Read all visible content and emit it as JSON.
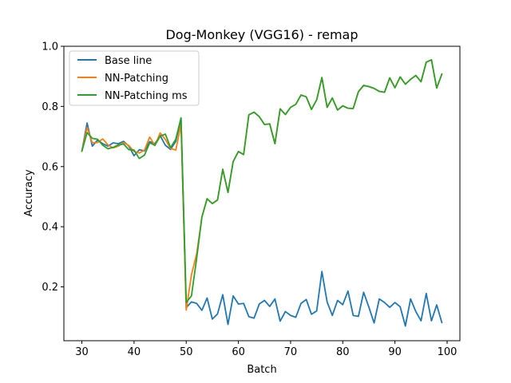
{
  "chart_data": {
    "type": "line",
    "title": "Dog-Monkey (VGG16) - remap",
    "xlabel": "Batch",
    "ylabel": "Accuracy",
    "xlim": [
      26.55,
      102.45
    ],
    "ylim": [
      0.021,
      1.0
    ],
    "xticks": [
      30,
      40,
      50,
      60,
      70,
      80,
      90,
      100
    ],
    "yticks": [
      0.2,
      0.4,
      0.6,
      0.8,
      1.0
    ],
    "xtick_labels": [
      "30",
      "40",
      "50",
      "60",
      "70",
      "80",
      "90",
      "100"
    ],
    "ytick_labels": [
      "0.2",
      "0.4",
      "0.6",
      "0.8",
      "1.0"
    ],
    "legend_position": "top-left",
    "grid": false,
    "x": [
      30,
      31,
      32,
      33,
      34,
      35,
      36,
      37,
      38,
      39,
      40,
      41,
      42,
      43,
      44,
      45,
      46,
      47,
      48,
      49,
      50,
      51,
      52,
      53,
      54,
      55,
      56,
      57,
      58,
      59,
      60,
      61,
      62,
      63,
      64,
      65,
      66,
      67,
      68,
      69,
      70,
      71,
      72,
      73,
      74,
      75,
      76,
      77,
      78,
      79,
      80,
      81,
      82,
      83,
      84,
      85,
      86,
      87,
      88,
      89,
      90,
      91,
      92,
      93,
      94,
      95,
      96,
      97,
      98,
      99
    ],
    "series": [
      {
        "name": "Base line",
        "color": "#1f77b4",
        "values": [
          0.651,
          0.745,
          0.668,
          0.688,
          0.676,
          0.668,
          0.679,
          0.676,
          0.684,
          0.668,
          0.636,
          0.656,
          0.652,
          0.683,
          0.676,
          0.703,
          0.671,
          0.657,
          0.684,
          0.76,
          0.131,
          0.15,
          0.145,
          0.122,
          0.163,
          0.093,
          0.11,
          0.174,
          0.075,
          0.17,
          0.143,
          0.145,
          0.101,
          0.096,
          0.143,
          0.155,
          0.135,
          0.16,
          0.086,
          0.118,
          0.105,
          0.099,
          0.145,
          0.158,
          0.109,
          0.12,
          0.251,
          0.15,
          0.105,
          0.155,
          0.141,
          0.186,
          0.105,
          0.102,
          0.182,
          0.133,
          0.08,
          0.16,
          0.148,
          0.132,
          0.148,
          0.134,
          0.07,
          0.16,
          0.118,
          0.087,
          0.178,
          0.087,
          0.14,
          0.081
        ]
      },
      {
        "name": "NN-Patching",
        "color": "#ff7f0e",
        "values": [
          0.651,
          0.73,
          0.679,
          0.68,
          0.692,
          0.672,
          0.662,
          0.668,
          0.68,
          0.67,
          0.65,
          0.645,
          0.655,
          0.698,
          0.67,
          0.712,
          0.69,
          0.66,
          0.655,
          0.74,
          0.123,
          0.24,
          0.31,
          0.432,
          0.493,
          0.477,
          0.489,
          0.591,
          0.514,
          0.617,
          0.65,
          0.64,
          0.772,
          0.781,
          0.766,
          0.74,
          0.742,
          0.676,
          0.792,
          0.773,
          0.797,
          0.807,
          0.838,
          0.832,
          0.79,
          0.822,
          0.896,
          0.797,
          0.828,
          0.788,
          0.802,
          0.794,
          0.793,
          0.849,
          0.87,
          0.866,
          0.86,
          0.85,
          0.847,
          0.895,
          0.862,
          0.898,
          0.874,
          0.89,
          0.903,
          0.882,
          0.947,
          0.955,
          0.861,
          0.908
        ]
      },
      {
        "name": "NN-Patching ms",
        "color": "#2ca02c",
        "values": [
          0.651,
          0.713,
          0.694,
          0.691,
          0.671,
          0.659,
          0.664,
          0.672,
          0.675,
          0.656,
          0.655,
          0.627,
          0.638,
          0.679,
          0.671,
          0.701,
          0.708,
          0.663,
          0.691,
          0.762,
          0.148,
          0.17,
          0.295,
          0.432,
          0.493,
          0.477,
          0.489,
          0.591,
          0.514,
          0.617,
          0.65,
          0.64,
          0.772,
          0.781,
          0.766,
          0.74,
          0.742,
          0.676,
          0.792,
          0.773,
          0.797,
          0.807,
          0.838,
          0.832,
          0.79,
          0.822,
          0.896,
          0.797,
          0.828,
          0.788,
          0.802,
          0.794,
          0.793,
          0.849,
          0.87,
          0.866,
          0.86,
          0.85,
          0.847,
          0.895,
          0.862,
          0.898,
          0.874,
          0.89,
          0.903,
          0.882,
          0.947,
          0.955,
          0.861,
          0.908
        ]
      }
    ]
  }
}
